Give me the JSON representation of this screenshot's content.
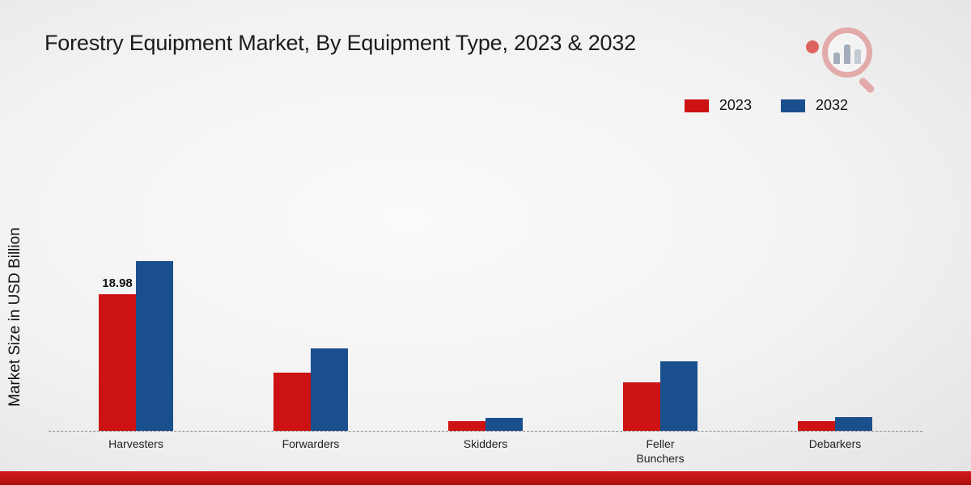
{
  "title": "Forestry Equipment Market, By Equipment Type, 2023 & 2032",
  "ylabel": "Market Size in USD Billion",
  "legend": [
    {
      "label": "2023",
      "color": "#cc1212"
    },
    {
      "label": "2032",
      "color": "#1a4f8e"
    }
  ],
  "chart_data": {
    "type": "bar",
    "categories": [
      "Harvesters",
      "Forwarders",
      "Skidders",
      "Feller Bunchers",
      "Debarkers"
    ],
    "series": [
      {
        "name": "2023",
        "color": "#cc1212",
        "values": [
          18.98,
          8.1,
          1.4,
          6.8,
          1.4
        ]
      },
      {
        "name": "2032",
        "color": "#1a4f8e",
        "values": [
          23.7,
          11.5,
          1.8,
          9.7,
          1.9
        ]
      }
    ],
    "annotations": [
      {
        "series": "2023",
        "category": "Harvesters",
        "text": "18.98"
      }
    ],
    "xlabel": "",
    "ylim": [
      0,
      25
    ],
    "grid": false,
    "baseline_style": "dashed",
    "legend_position": "top-right"
  },
  "colors": {
    "accent_red": "#cc1212",
    "accent_blue": "#1a4f8e",
    "footer_bar": "#c01313",
    "background": "#efefef"
  }
}
